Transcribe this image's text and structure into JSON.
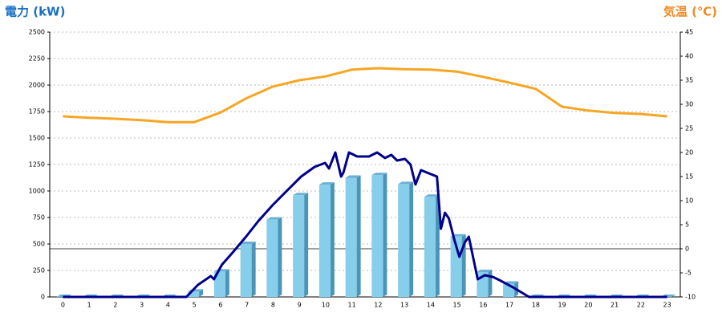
{
  "chart_data": {
    "type": "bar",
    "y_axis_label": "電力 (kW)",
    "y2_axis_label": "気温 (℃)",
    "categories": [
      "0",
      "1",
      "2",
      "3",
      "4",
      "5",
      "6",
      "7",
      "8",
      "9",
      "10",
      "11",
      "12",
      "13",
      "14",
      "15",
      "16",
      "17",
      "18",
      "19",
      "20",
      "21",
      "22",
      "23"
    ],
    "ylim": [
      0,
      2500
    ],
    "yticks": [
      0,
      250,
      500,
      750,
      1000,
      1250,
      1500,
      1750,
      2000,
      2250,
      2500
    ],
    "y2lim": [
      -10,
      45
    ],
    "y2ticks": [
      -10,
      -5,
      0,
      5,
      10,
      15,
      20,
      25,
      30,
      35,
      40,
      45
    ],
    "grid": true,
    "series": [
      {
        "type": "bar",
        "color": "#87ceeb",
        "values": [
          0,
          0,
          0,
          0,
          0,
          50,
          240,
          500,
          730,
          960,
          1060,
          1125,
          1150,
          1065,
          945,
          570,
          235,
          125,
          0,
          0,
          0,
          0,
          0,
          0
        ]
      },
      {
        "type": "line",
        "color": "#00008b",
        "x": [
          0,
          4.7,
          5.14,
          5.63,
          5.75,
          6.05,
          6.48,
          6.97,
          7.45,
          8.0,
          8.55,
          9.07,
          9.58,
          9.98,
          10.13,
          10.37,
          10.59,
          10.68,
          10.89,
          11.2,
          11.65,
          11.96,
          12.26,
          12.5,
          12.72,
          13.02,
          13.23,
          13.42,
          13.63,
          13.93,
          14.24,
          14.39,
          14.54,
          14.69,
          14.91,
          15.09,
          15.3,
          15.45,
          15.61,
          15.79,
          16.06,
          16.37,
          16.67,
          17.13,
          17.74,
          23
        ],
        "values": [
          0,
          0,
          114,
          197,
          167,
          303,
          424,
          568,
          720,
          871,
          1008,
          1136,
          1227,
          1265,
          1212,
          1364,
          1136,
          1174,
          1364,
          1326,
          1326,
          1364,
          1311,
          1341,
          1288,
          1303,
          1250,
          1061,
          1197,
          1167,
          1136,
          644,
          795,
          742,
          530,
          379,
          515,
          568,
          379,
          167,
          205,
          189,
          152,
          91,
          0,
          0
        ]
      },
      {
        "type": "line",
        "axis": "y2",
        "color": "#f5a623",
        "values": [
          27.5,
          27.2,
          27.0,
          26.7,
          26.3,
          26.3,
          28.3,
          31.3,
          33.7,
          35.0,
          35.8,
          37.2,
          37.5,
          37.3,
          37.2,
          36.8,
          35.7,
          34.5,
          33.2,
          29.5,
          28.7,
          28.2,
          28.0,
          27.5
        ]
      }
    ]
  }
}
